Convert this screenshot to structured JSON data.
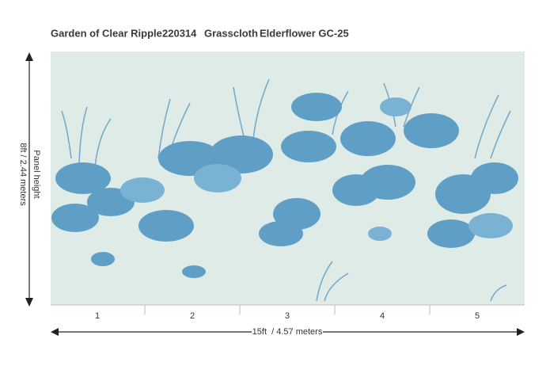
{
  "header": {
    "title": "Garden of Clear Ripple",
    "code": "220314",
    "material": "Grasscloth",
    "colorway": "Elderflower GC-25"
  },
  "dimensions": {
    "height_label": "Panel height",
    "height": "8ft / 2.44 meters",
    "width": "15ft  / 4.57 meters"
  },
  "panels": [
    "1",
    "2",
    "3",
    "4",
    "5"
  ]
}
